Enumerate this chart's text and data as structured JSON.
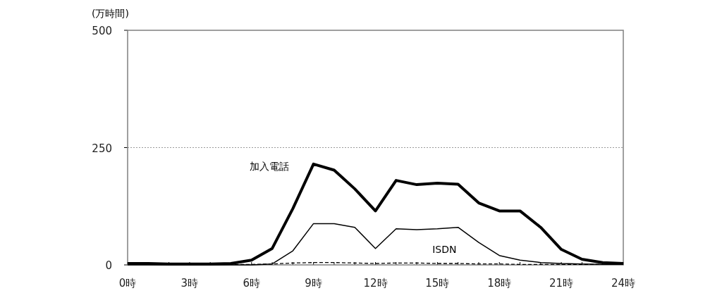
{
  "chart_data": {
    "type": "line",
    "ylabel": "(万時間)",
    "x": [
      0,
      1,
      2,
      3,
      4,
      5,
      6,
      7,
      8,
      9,
      10,
      11,
      12,
      13,
      14,
      15,
      16,
      17,
      18,
      19,
      20,
      21,
      22,
      23,
      24
    ],
    "series": [
      {
        "name": "加入電話",
        "color": "#000000",
        "line_style": "solid",
        "values": [
          3,
          3,
          2,
          2,
          2,
          3,
          10,
          35,
          120,
          215,
          202,
          162,
          115,
          180,
          171,
          174,
          172,
          132,
          115,
          115,
          80,
          33,
          12,
          5,
          3
        ]
      },
      {
        "name": "ISDN",
        "color": "#000000",
        "line_style": "solid",
        "values": [
          0,
          0,
          0,
          0,
          0,
          0,
          0,
          2,
          30,
          88,
          88,
          80,
          35,
          77,
          75,
          77,
          80,
          48,
          20,
          10,
          5,
          3,
          2,
          1,
          1
        ]
      },
      {
        "color": "#000000",
        "line_style": "dashed",
        "values": [
          1,
          1,
          1,
          1,
          1,
          1,
          1,
          2,
          4,
          5,
          5,
          4,
          3,
          4,
          4,
          3,
          3,
          2,
          2,
          1,
          1,
          1,
          1,
          1,
          1
        ]
      }
    ],
    "xlim": [
      0,
      24
    ],
    "xticks": [
      {
        "value": 0,
        "label": "0時"
      },
      {
        "value": 3,
        "label": "3時"
      },
      {
        "value": 6,
        "label": "6時"
      },
      {
        "value": 9,
        "label": "9時"
      },
      {
        "value": 12,
        "label": "12時"
      },
      {
        "value": 15,
        "label": "15時"
      },
      {
        "value": 18,
        "label": "18時"
      },
      {
        "value": 21,
        "label": "21時"
      },
      {
        "value": 24,
        "label": "24時"
      }
    ],
    "ylim": [
      0,
      500
    ],
    "yticks": [
      0,
      250,
      500
    ],
    "grid": "y",
    "legend": false,
    "marker": "none"
  }
}
